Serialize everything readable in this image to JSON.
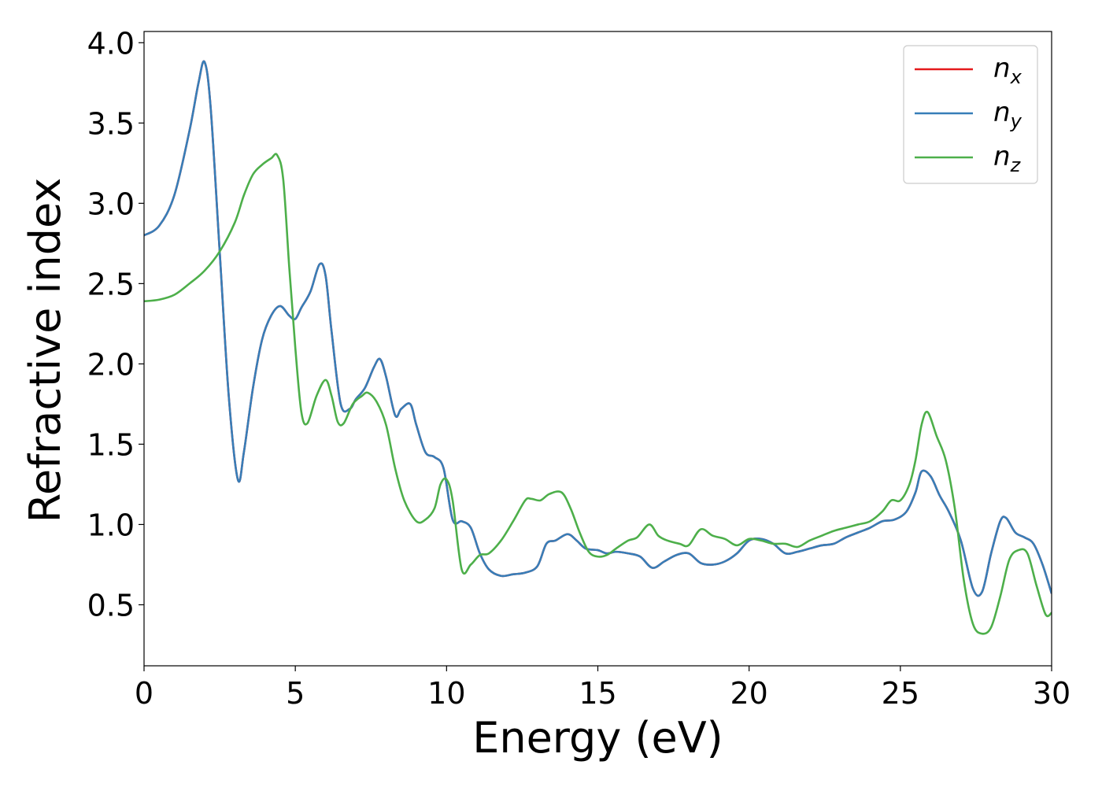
{
  "chart_data": {
    "type": "line",
    "title": "",
    "xlabel": "Energy (eV)",
    "ylabel": "Refractive index",
    "xlim": [
      0,
      30
    ],
    "ylim": [
      0.12,
      4.07
    ],
    "xticks": [
      0,
      5,
      10,
      15,
      20,
      25,
      30
    ],
    "yticks": [
      0.5,
      1.0,
      1.5,
      2.0,
      2.5,
      3.0,
      3.5,
      4.0
    ],
    "grid": false,
    "legend_position": "top-right",
    "legend_entries": [
      {
        "symbol": "n",
        "subscript": "x",
        "color": "#e41a1c"
      },
      {
        "symbol": "n",
        "subscript": "y",
        "color": "#377eb8"
      },
      {
        "symbol": "n",
        "subscript": "z",
        "color": "#4daf4a"
      }
    ],
    "series": [
      {
        "name": "n_x",
        "color": "#e41a1c",
        "x": [
          0,
          0.5,
          1.0,
          1.5,
          1.8,
          2.0,
          2.2,
          2.5,
          2.8,
          3.1,
          3.3,
          3.6,
          3.9,
          4.2,
          4.5,
          4.8,
          5.0,
          5.2,
          5.5,
          5.8,
          6.0,
          6.2,
          6.5,
          6.8,
          7.0,
          7.3,
          7.6,
          7.8,
          8.0,
          8.3,
          8.5,
          8.8,
          9.0,
          9.3,
          9.6,
          9.9,
          10.2,
          10.5,
          10.8,
          11.1,
          11.4,
          11.8,
          12.2,
          12.6,
          13.0,
          13.3,
          13.6,
          14.0,
          14.3,
          14.6,
          15.0,
          15.3,
          15.6,
          16.0,
          16.4,
          16.8,
          17.2,
          17.6,
          18.0,
          18.4,
          18.8,
          19.2,
          19.6,
          20.0,
          20.4,
          20.8,
          21.2,
          21.6,
          22.0,
          22.4,
          22.8,
          23.2,
          23.6,
          24.0,
          24.4,
          24.8,
          25.2,
          25.5,
          25.7,
          26.0,
          26.3,
          26.6,
          27.0,
          27.4,
          27.7,
          28.0,
          28.3,
          28.5,
          28.8,
          29.1,
          29.4,
          29.7,
          30.0
        ],
        "y": [
          2.8,
          2.86,
          3.05,
          3.45,
          3.75,
          3.88,
          3.6,
          2.7,
          1.8,
          1.28,
          1.45,
          1.85,
          2.15,
          2.3,
          2.36,
          2.3,
          2.28,
          2.35,
          2.45,
          2.62,
          2.55,
          2.2,
          1.75,
          1.72,
          1.78,
          1.85,
          1.98,
          2.03,
          1.92,
          1.68,
          1.72,
          1.75,
          1.62,
          1.45,
          1.42,
          1.35,
          1.03,
          1.02,
          0.98,
          0.82,
          0.72,
          0.68,
          0.69,
          0.7,
          0.74,
          0.88,
          0.9,
          0.94,
          0.9,
          0.85,
          0.84,
          0.82,
          0.83,
          0.82,
          0.8,
          0.73,
          0.77,
          0.81,
          0.82,
          0.76,
          0.75,
          0.77,
          0.82,
          0.9,
          0.91,
          0.88,
          0.82,
          0.83,
          0.85,
          0.87,
          0.88,
          0.92,
          0.95,
          0.98,
          1.02,
          1.03,
          1.08,
          1.2,
          1.33,
          1.3,
          1.18,
          1.08,
          0.9,
          0.6,
          0.58,
          0.82,
          1.02,
          1.04,
          0.95,
          0.92,
          0.88,
          0.75,
          0.57
        ]
      },
      {
        "name": "n_y",
        "color": "#377eb8",
        "x": [
          0,
          0.5,
          1.0,
          1.5,
          1.8,
          2.0,
          2.2,
          2.5,
          2.8,
          3.1,
          3.3,
          3.6,
          3.9,
          4.2,
          4.5,
          4.8,
          5.0,
          5.2,
          5.5,
          5.8,
          6.0,
          6.2,
          6.5,
          6.8,
          7.0,
          7.3,
          7.6,
          7.8,
          8.0,
          8.3,
          8.5,
          8.8,
          9.0,
          9.3,
          9.6,
          9.9,
          10.2,
          10.5,
          10.8,
          11.1,
          11.4,
          11.8,
          12.2,
          12.6,
          13.0,
          13.3,
          13.6,
          14.0,
          14.3,
          14.6,
          15.0,
          15.3,
          15.6,
          16.0,
          16.4,
          16.8,
          17.2,
          17.6,
          18.0,
          18.4,
          18.8,
          19.2,
          19.6,
          20.0,
          20.4,
          20.8,
          21.2,
          21.6,
          22.0,
          22.4,
          22.8,
          23.2,
          23.6,
          24.0,
          24.4,
          24.8,
          25.2,
          25.5,
          25.7,
          26.0,
          26.3,
          26.6,
          27.0,
          27.4,
          27.7,
          28.0,
          28.3,
          28.5,
          28.8,
          29.1,
          29.4,
          29.7,
          30.0
        ],
        "y": [
          2.8,
          2.86,
          3.05,
          3.45,
          3.75,
          3.88,
          3.6,
          2.7,
          1.8,
          1.28,
          1.45,
          1.85,
          2.15,
          2.3,
          2.36,
          2.3,
          2.28,
          2.35,
          2.45,
          2.62,
          2.55,
          2.2,
          1.75,
          1.72,
          1.78,
          1.85,
          1.98,
          2.03,
          1.92,
          1.68,
          1.72,
          1.75,
          1.62,
          1.45,
          1.42,
          1.35,
          1.03,
          1.02,
          0.98,
          0.82,
          0.72,
          0.68,
          0.69,
          0.7,
          0.74,
          0.88,
          0.9,
          0.94,
          0.9,
          0.85,
          0.84,
          0.82,
          0.83,
          0.82,
          0.8,
          0.73,
          0.77,
          0.81,
          0.82,
          0.76,
          0.75,
          0.77,
          0.82,
          0.9,
          0.91,
          0.88,
          0.82,
          0.83,
          0.85,
          0.87,
          0.88,
          0.92,
          0.95,
          0.98,
          1.02,
          1.03,
          1.08,
          1.2,
          1.33,
          1.3,
          1.18,
          1.08,
          0.9,
          0.6,
          0.58,
          0.82,
          1.02,
          1.04,
          0.95,
          0.92,
          0.88,
          0.75,
          0.57
        ]
      },
      {
        "name": "n_z",
        "color": "#4daf4a",
        "x": [
          0,
          0.5,
          1.0,
          1.5,
          2.0,
          2.5,
          3.0,
          3.3,
          3.6,
          3.9,
          4.2,
          4.4,
          4.6,
          4.8,
          5.0,
          5.2,
          5.4,
          5.7,
          6.0,
          6.2,
          6.4,
          6.6,
          6.9,
          7.2,
          7.4,
          7.7,
          8.0,
          8.3,
          8.6,
          9.0,
          9.3,
          9.6,
          9.8,
          10.0,
          10.2,
          10.5,
          10.8,
          11.1,
          11.4,
          11.8,
          12.2,
          12.6,
          12.8,
          13.1,
          13.4,
          13.8,
          14.1,
          14.4,
          14.7,
          15.0,
          15.3,
          15.6,
          16.0,
          16.3,
          16.7,
          17.0,
          17.3,
          17.7,
          18.0,
          18.4,
          18.8,
          19.2,
          19.6,
          20.0,
          20.4,
          20.8,
          21.2,
          21.6,
          22.0,
          22.4,
          22.8,
          23.2,
          23.6,
          24.0,
          24.4,
          24.7,
          25.0,
          25.3,
          25.5,
          25.7,
          25.9,
          26.2,
          26.5,
          26.8,
          27.1,
          27.4,
          27.7,
          28.0,
          28.3,
          28.6,
          28.9,
          29.2,
          29.5,
          29.8,
          30.0
        ],
        "y": [
          2.39,
          2.4,
          2.43,
          2.5,
          2.58,
          2.7,
          2.88,
          3.05,
          3.18,
          3.24,
          3.28,
          3.3,
          3.15,
          2.6,
          2.1,
          1.7,
          1.63,
          1.8,
          1.9,
          1.8,
          1.64,
          1.63,
          1.75,
          1.8,
          1.82,
          1.76,
          1.62,
          1.35,
          1.15,
          1.02,
          1.03,
          1.1,
          1.25,
          1.28,
          1.15,
          0.72,
          0.75,
          0.81,
          0.82,
          0.9,
          1.02,
          1.15,
          1.16,
          1.15,
          1.19,
          1.2,
          1.1,
          0.95,
          0.83,
          0.8,
          0.81,
          0.85,
          0.9,
          0.92,
          1.0,
          0.93,
          0.9,
          0.88,
          0.87,
          0.97,
          0.93,
          0.91,
          0.87,
          0.91,
          0.9,
          0.88,
          0.88,
          0.86,
          0.9,
          0.93,
          0.96,
          0.98,
          1.0,
          1.02,
          1.08,
          1.15,
          1.15,
          1.25,
          1.4,
          1.62,
          1.7,
          1.55,
          1.4,
          1.1,
          0.65,
          0.38,
          0.32,
          0.36,
          0.55,
          0.78,
          0.84,
          0.82,
          0.62,
          0.44,
          0.45
        ]
      }
    ]
  }
}
